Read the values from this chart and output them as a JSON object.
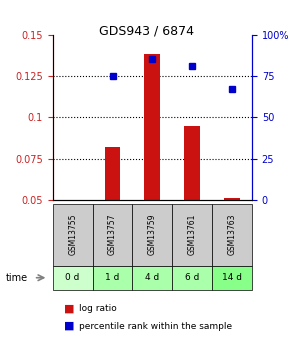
{
  "title": "GDS943 / 6874",
  "samples": [
    "GSM13755",
    "GSM13757",
    "GSM13759",
    "GSM13761",
    "GSM13763"
  ],
  "time_labels": [
    "0 d",
    "1 d",
    "4 d",
    "6 d",
    "14 d"
  ],
  "log_ratio": [
    0.05,
    0.082,
    0.138,
    0.095,
    0.051
  ],
  "percentile_rank": [
    null,
    75.0,
    85.0,
    81.0,
    67.0
  ],
  "log_ratio_baseline": 0.05,
  "left_ylim": [
    0.05,
    0.15
  ],
  "right_ylim": [
    0,
    100
  ],
  "left_yticks": [
    0.05,
    0.075,
    0.1,
    0.125,
    0.15
  ],
  "right_yticks": [
    0,
    25,
    50,
    75,
    100
  ],
  "right_yticklabels": [
    "0",
    "25",
    "50",
    "75",
    "100%"
  ],
  "bar_color": "#cc1111",
  "dot_color": "#0000cc",
  "grid_color": "#000000",
  "bg_color_plot": "#ffffff",
  "bg_color_gray": "#cccccc",
  "bg_color_green": "#aaffaa",
  "bar_width": 0.4,
  "left_axis_color": "#cc2222",
  "right_axis_color": "#0000cc"
}
